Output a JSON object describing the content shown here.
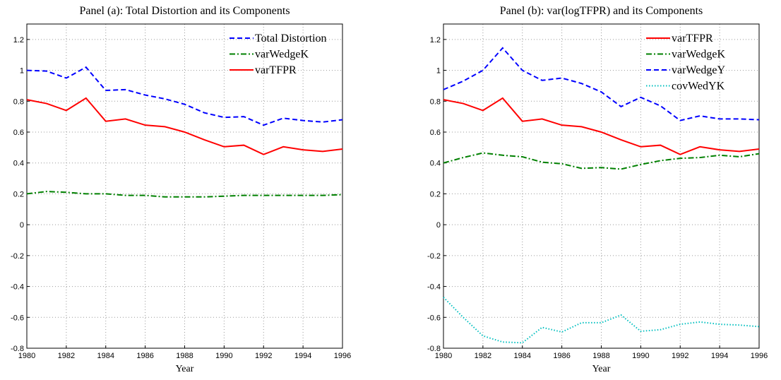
{
  "chart_data": [
    {
      "type": "line",
      "title": "Panel (a): Total Distortion and its Components",
      "x_label": "Year",
      "x": [
        1980,
        1981,
        1982,
        1983,
        1984,
        1985,
        1986,
        1987,
        1988,
        1989,
        1990,
        1991,
        1992,
        1993,
        1994,
        1995,
        1996
      ],
      "xlim": [
        1980,
        1996
      ],
      "xticks": [
        1980,
        1982,
        1984,
        1986,
        1988,
        1990,
        1992,
        1994,
        1996
      ],
      "ylim": [
        -0.8,
        1.3
      ],
      "yticks": [
        -0.8,
        -0.6,
        -0.4,
        -0.2,
        0,
        0.2,
        0.4,
        0.6,
        0.8,
        1,
        1.2
      ],
      "grid": true,
      "legend": "upper-right",
      "series": [
        {
          "name": "Total Distortion",
          "color": "#0000ff",
          "linestyle": "dashed",
          "values": [
            1.0,
            0.995,
            0.95,
            1.02,
            0.87,
            0.875,
            0.84,
            0.815,
            0.78,
            0.725,
            0.695,
            0.7,
            0.645,
            0.69,
            0.675,
            0.665,
            0.68
          ]
        },
        {
          "name": "varWedgeK",
          "color": "#008000",
          "linestyle": "dashdot",
          "values": [
            0.2,
            0.215,
            0.21,
            0.2,
            0.2,
            0.19,
            0.19,
            0.18,
            0.18,
            0.18,
            0.185,
            0.19,
            0.19,
            0.19,
            0.19,
            0.19,
            0.195
          ]
        },
        {
          "name": "varTFPR",
          "color": "#ff0000",
          "linestyle": "solid",
          "values": [
            0.81,
            0.785,
            0.74,
            0.82,
            0.67,
            0.685,
            0.645,
            0.635,
            0.6,
            0.55,
            0.505,
            0.515,
            0.455,
            0.505,
            0.485,
            0.475,
            0.49
          ]
        }
      ]
    },
    {
      "type": "line",
      "title": "Panel (b): var(logTFPR) and its Components",
      "x_label": "Year",
      "x": [
        1980,
        1981,
        1982,
        1983,
        1984,
        1985,
        1986,
        1987,
        1988,
        1989,
        1990,
        1991,
        1992,
        1993,
        1994,
        1995,
        1996
      ],
      "xlim": [
        1980,
        1996
      ],
      "xticks": [
        1980,
        1982,
        1984,
        1986,
        1988,
        1990,
        1992,
        1994,
        1996
      ],
      "ylim": [
        -0.8,
        1.3
      ],
      "yticks": [
        -0.8,
        -0.6,
        -0.4,
        -0.2,
        0,
        0.2,
        0.4,
        0.6,
        0.8,
        1,
        1.2
      ],
      "grid": true,
      "legend": "upper-right",
      "series": [
        {
          "name": "varTFPR",
          "color": "#ff0000",
          "linestyle": "solid",
          "values": [
            0.81,
            0.785,
            0.74,
            0.82,
            0.67,
            0.685,
            0.645,
            0.635,
            0.6,
            0.55,
            0.505,
            0.515,
            0.455,
            0.505,
            0.485,
            0.475,
            0.49
          ]
        },
        {
          "name": "varWedgeK",
          "color": "#008000",
          "linestyle": "dashdot",
          "values": [
            0.4,
            0.435,
            0.465,
            0.45,
            0.44,
            0.405,
            0.395,
            0.365,
            0.37,
            0.36,
            0.39,
            0.415,
            0.43,
            0.435,
            0.45,
            0.44,
            0.46
          ]
        },
        {
          "name": "varWedgeY",
          "color": "#0000ff",
          "linestyle": "dashed",
          "values": [
            0.875,
            0.93,
            1.0,
            1.145,
            1.0,
            0.935,
            0.95,
            0.915,
            0.86,
            0.765,
            0.825,
            0.77,
            0.675,
            0.705,
            0.685,
            0.685,
            0.68
          ]
        },
        {
          "name": "covWedYK",
          "color": "#00bfbf",
          "linestyle": "dotted",
          "values": [
            -0.47,
            -0.6,
            -0.72,
            -0.76,
            -0.765,
            -0.665,
            -0.695,
            -0.635,
            -0.635,
            -0.585,
            -0.69,
            -0.68,
            -0.645,
            -0.63,
            -0.645,
            -0.65,
            -0.66
          ]
        }
      ]
    }
  ]
}
